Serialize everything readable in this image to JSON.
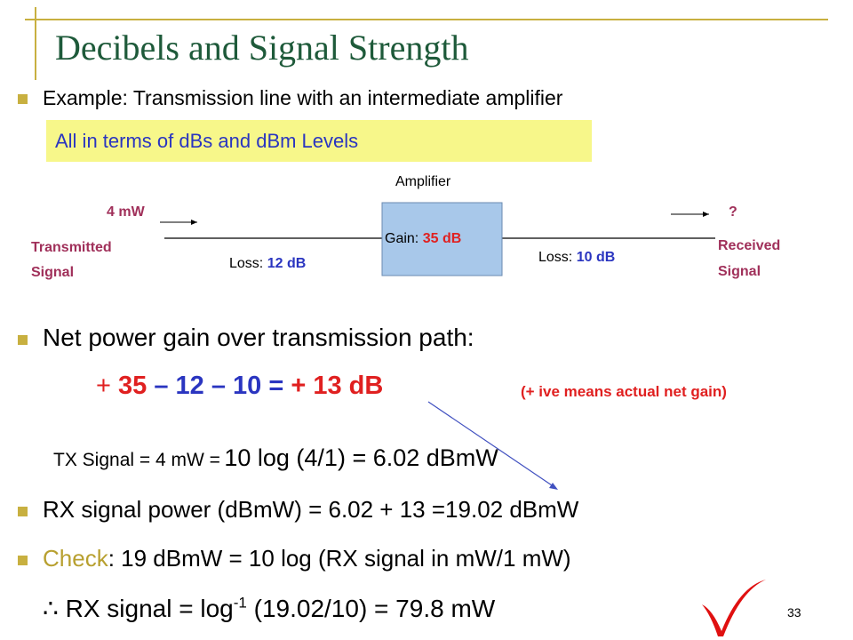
{
  "title": "Decibels and Signal Strength",
  "example": "Example: Transmission line with an intermediate amplifier",
  "highlight": "All in terms of dBs and dBm Levels",
  "diagram": {
    "amplifier_caption": "Amplifier",
    "input_power": "4 mW",
    "gain_label": "Gain:",
    "gain_value": "35 dB",
    "loss1_label": "Loss:",
    "loss1_value": "12 dB",
    "loss2_label": "Loss:",
    "loss2_value": "10 dB",
    "output_power": "?",
    "transmitted": [
      "Transmitted",
      "Signal"
    ],
    "received": [
      "Received",
      "Signal"
    ]
  },
  "net_gain_heading": "Net power gain over transmission path:",
  "equation": {
    "plus": "+",
    "gain": "35",
    "losses": "– 12 – 10 =",
    "result": "+ 13 dB",
    "note": "(+ ive means actual net gain)"
  },
  "tx_line": {
    "prefix": "TX Signal = 4 mW =",
    "rest": "10 log (4/1) = 6.02 dBmW"
  },
  "rx_line": "RX signal power (dBmW) = 6.02 + 13 =19.02 dBmW",
  "check_line": {
    "word": "Check",
    "rest": ": 19 dBmW = 10 log (RX signal in mW/1 mW)"
  },
  "therefore_line": {
    "symbol": "∴",
    "text": "RX signal = log",
    "sup": "-1",
    "rest": " (19.02/10) = 79.8 mW"
  },
  "page_number": "33"
}
